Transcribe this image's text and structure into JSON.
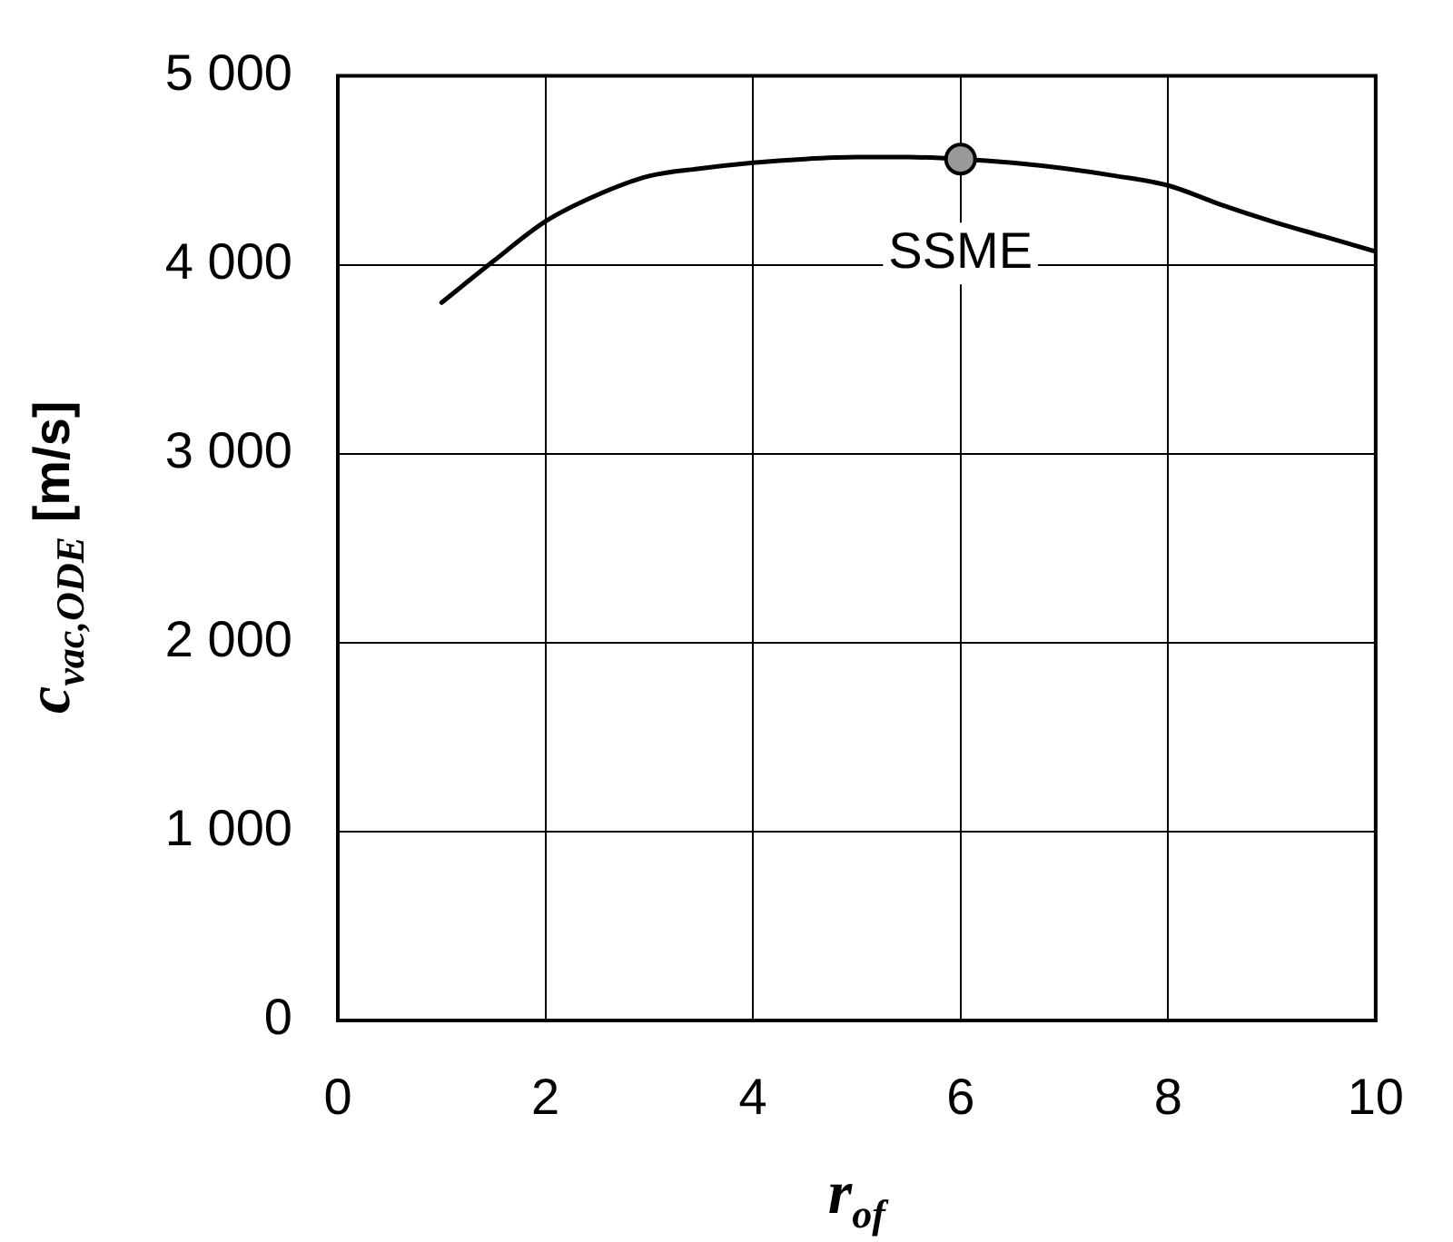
{
  "chart_data": {
    "type": "line",
    "xlabel": "r$_{of}$",
    "ylabel": "c$_{vac,ODE}$ [m/s]",
    "xlim": [
      0,
      10
    ],
    "xticks": [
      0,
      2,
      4,
      6,
      8,
      10
    ],
    "ylim": [
      0,
      5000
    ],
    "yticks": [
      0,
      {
        "value": 1000,
        "label": "1 000"
      },
      {
        "value": 2000,
        "label": "2 000"
      },
      {
        "value": 3000,
        "label": "3 000"
      },
      {
        "value": 4000,
        "label": "4 000"
      },
      {
        "value": 5000,
        "label": "5 000"
      }
    ],
    "grid": true,
    "series": [
      {
        "color": "#000000",
        "marker": "none",
        "x": [
          1,
          1.5,
          2,
          2.5,
          3,
          3.5,
          4,
          4.5,
          5,
          5.5,
          6,
          6.5,
          7,
          7.5,
          8,
          8.5,
          9,
          9.5,
          10
        ],
        "values": [
          3800,
          4020,
          4230,
          4370,
          4470,
          4510,
          4540,
          4560,
          4570,
          4570,
          4560,
          4540,
          4510,
          4470,
          4420,
          4320,
          4230,
          4150,
          4070
        ]
      },
      {
        "type": "scatter",
        "color": "#999999",
        "marker": "circle",
        "x": [
          6
        ],
        "values": [
          4560
        ]
      }
    ],
    "annotations": [
      {
        "text": "SSME",
        "x": 6,
        "y": 4560
      }
    ]
  }
}
